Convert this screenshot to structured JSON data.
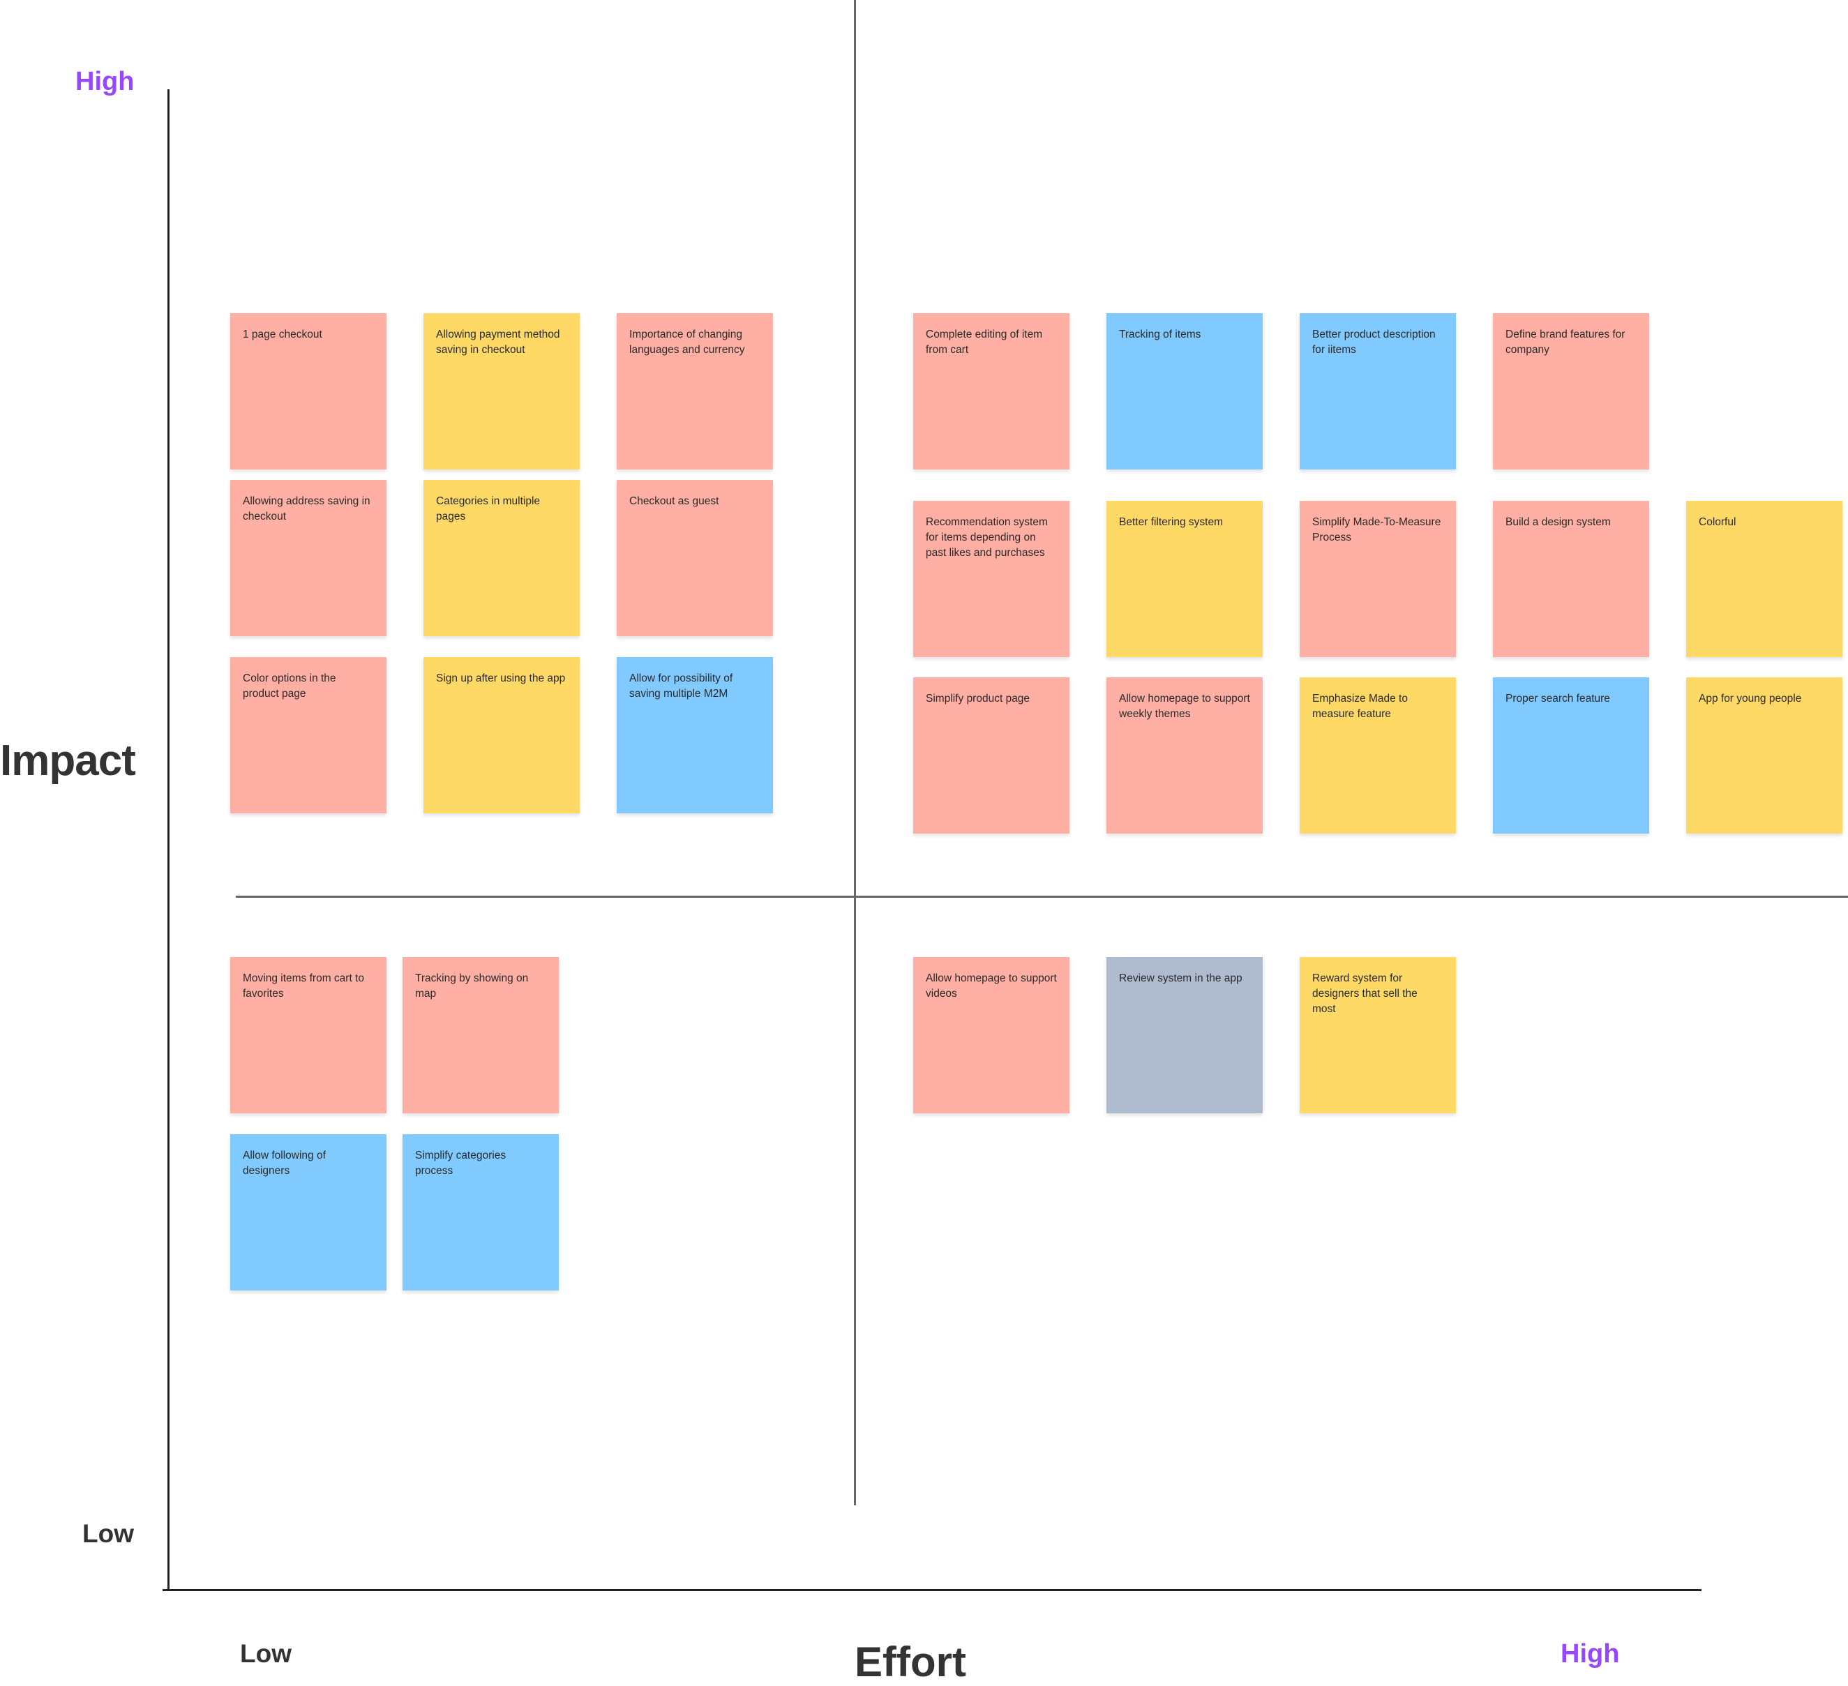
{
  "axes": {
    "y_high": "High",
    "y_low": "Low",
    "y_title": "Impact",
    "x_low": "Low",
    "x_title": "Effort",
    "x_high": "High"
  },
  "colors": {
    "pink": "#ffafa3",
    "yellow": "#ffd966",
    "blue": "#80caff",
    "gray": "#afbccf",
    "accent": "#9747ff"
  },
  "notes": [
    {
      "text": "1 page checkout",
      "color": "pink"
    },
    {
      "text": "Allowing payment method saving in checkout",
      "color": "yellow"
    },
    {
      "text": "Importance of changing languages and currency",
      "color": "pink"
    },
    {
      "text": "Allowing address saving in checkout",
      "color": "pink"
    },
    {
      "text": "Categories in multiple pages",
      "color": "yellow"
    },
    {
      "text": "Checkout as guest",
      "color": "pink"
    },
    {
      "text": "Color options in the product page",
      "color": "pink"
    },
    {
      "text": "Sign up after using the app",
      "color": "yellow"
    },
    {
      "text": "Allow for possibility of saving multiple M2M",
      "color": "blue"
    },
    {
      "text": "Complete editing of item from cart",
      "color": "pink"
    },
    {
      "text": "Tracking of items",
      "color": "blue"
    },
    {
      "text": "Better product description for iitems",
      "color": "blue"
    },
    {
      "text": "Define brand features for company",
      "color": "pink"
    },
    {
      "text": "Recommendation system for items depending on past likes and purchases",
      "color": "pink"
    },
    {
      "text": "Better filtering system",
      "color": "yellow"
    },
    {
      "text": "Simplify Made-To-Measure Process",
      "color": "pink"
    },
    {
      "text": "Build a design system",
      "color": "pink"
    },
    {
      "text": "Colorful",
      "color": "yellow"
    },
    {
      "text": "Simplify product page",
      "color": "pink"
    },
    {
      "text": "Allow homepage to support weekly themes",
      "color": "pink"
    },
    {
      "text": "Emphasize Made to measure feature",
      "color": "yellow"
    },
    {
      "text": "Proper search feature",
      "color": "blue"
    },
    {
      "text": "App for young people",
      "color": "yellow"
    },
    {
      "text": "Moving items from cart to favorites",
      "color": "pink"
    },
    {
      "text": "Tracking by showing on map",
      "color": "pink"
    },
    {
      "text": "Allow following of designers",
      "color": "blue"
    },
    {
      "text": "Simplify categories process",
      "color": "blue"
    },
    {
      "text": "Allow homepage to support videos",
      "color": "pink"
    },
    {
      "text": "Review system in the app",
      "color": "gray"
    },
    {
      "text": "Reward system for designers that sell the most",
      "color": "yellow"
    }
  ]
}
